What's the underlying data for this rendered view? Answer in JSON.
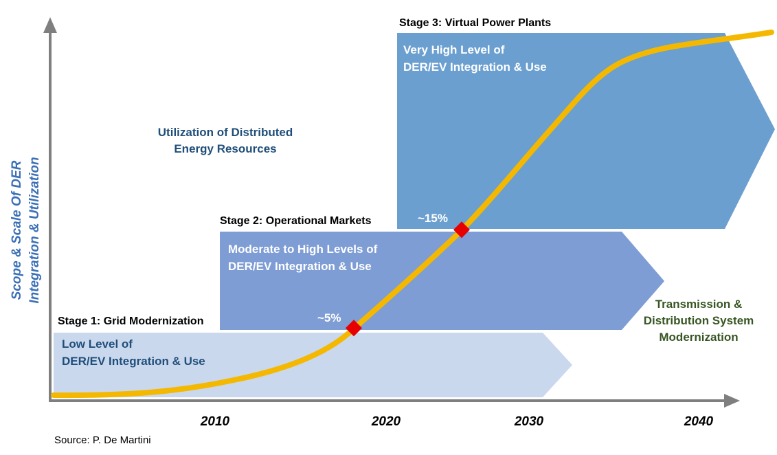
{
  "axis": {
    "y_title_line1": "Scope & Scale Of DER",
    "y_title_line2": "Integration & Utilization",
    "x_ticks": [
      "2010",
      "2020",
      "2030",
      "2040"
    ]
  },
  "stages": [
    {
      "title": "Stage 1: Grid Modernization",
      "line1": "Low Level of",
      "line2": "DER/EV Integration & Use",
      "color": "#cad8ee"
    },
    {
      "title": "Stage 2: Operational Markets",
      "line1": "Moderate to High Levels of",
      "line2": "DER/EV Integration & Use",
      "color": "#7e9dd5"
    },
    {
      "title": "Stage 3: Virtual Power Plants",
      "line1": "Very High Level of",
      "line2": "DER/EV Integration & Use",
      "color": "#6b9fd0"
    }
  ],
  "utilization": {
    "line1": "Utilization of Distributed",
    "line2": "Energy Resources"
  },
  "tdm": {
    "line1": "Transmission &",
    "line2": "Distribution System",
    "line3": "Modernization"
  },
  "markers": [
    {
      "label": "~5%"
    },
    {
      "label": "~15%"
    }
  ],
  "colors": {
    "curve": "#f5b800",
    "marker": "#e60000",
    "axis": "#7f7f7f"
  },
  "source": "Source: P. De Martini"
}
